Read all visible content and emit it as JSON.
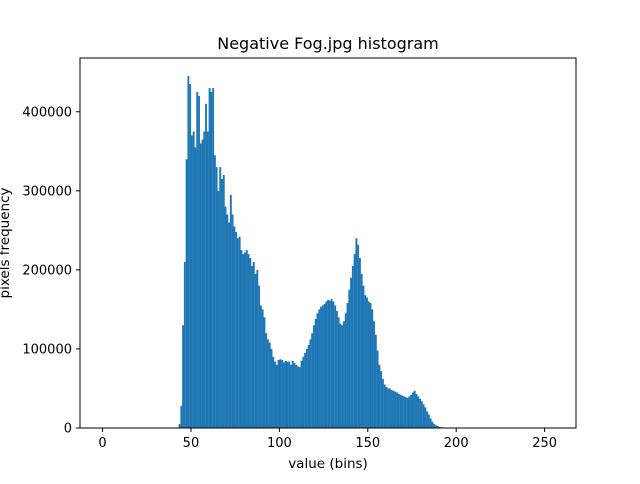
{
  "chart_data": {
    "type": "bar",
    "title": "Negative Fog.jpg histogram",
    "xlabel": "value (bins)",
    "ylabel": "pixels frequency",
    "xlim": [
      -12.75,
      267.75
    ],
    "ylim": [
      0,
      468000
    ],
    "xticks": [
      0,
      50,
      100,
      150,
      200,
      250
    ],
    "yticks": [
      0,
      100000,
      200000,
      300000,
      400000
    ],
    "grid": false,
    "bar_color": "#1f77b4",
    "bin_width": 1,
    "series": [
      {
        "values": [
          [
            43,
            5000
          ],
          [
            44,
            28000
          ],
          [
            45,
            130000
          ],
          [
            46,
            210000
          ],
          [
            47,
            340000
          ],
          [
            48,
            445000
          ],
          [
            49,
            435000
          ],
          [
            50,
            370000
          ],
          [
            51,
            375000
          ],
          [
            52,
            355000
          ],
          [
            53,
            425000
          ],
          [
            54,
            420000
          ],
          [
            55,
            360000
          ],
          [
            56,
            365000
          ],
          [
            57,
            375000
          ],
          [
            58,
            410000
          ],
          [
            59,
            375000
          ],
          [
            60,
            430000
          ],
          [
            61,
            425000
          ],
          [
            62,
            430000
          ],
          [
            63,
            345000
          ],
          [
            64,
            330000
          ],
          [
            65,
            300000
          ],
          [
            66,
            330000
          ],
          [
            67,
            315000
          ],
          [
            68,
            320000
          ],
          [
            69,
            280000
          ],
          [
            70,
            270000
          ],
          [
            71,
            260000
          ],
          [
            72,
            295000
          ],
          [
            73,
            270000
          ],
          [
            74,
            255000
          ],
          [
            75,
            248000
          ],
          [
            76,
            240000
          ],
          [
            77,
            242000
          ],
          [
            78,
            225000
          ],
          [
            79,
            220000
          ],
          [
            80,
            222000
          ],
          [
            81,
            225000
          ],
          [
            82,
            220000
          ],
          [
            83,
            215000
          ],
          [
            84,
            205000
          ],
          [
            85,
            210000
          ],
          [
            86,
            195000
          ],
          [
            87,
            200000
          ],
          [
            88,
            180000
          ],
          [
            89,
            155000
          ],
          [
            90,
            150000
          ],
          [
            91,
            140000
          ],
          [
            92,
            120000
          ],
          [
            93,
            112000
          ],
          [
            94,
            108000
          ],
          [
            95,
            100000
          ],
          [
            96,
            90000
          ],
          [
            97,
            84000
          ],
          [
            98,
            80000
          ],
          [
            99,
            86000
          ],
          [
            100,
            87000
          ],
          [
            101,
            86000
          ],
          [
            102,
            83000
          ],
          [
            103,
            85000
          ],
          [
            104,
            84000
          ],
          [
            105,
            84000
          ],
          [
            106,
            80000
          ],
          [
            107,
            85000
          ],
          [
            108,
            82000
          ],
          [
            109,
            80000
          ],
          [
            110,
            78000
          ],
          [
            111,
            77000
          ],
          [
            112,
            85000
          ],
          [
            113,
            90000
          ],
          [
            114,
            95000
          ],
          [
            115,
            100000
          ],
          [
            116,
            105000
          ],
          [
            117,
            112000
          ],
          [
            118,
            120000
          ],
          [
            119,
            130000
          ],
          [
            120,
            138000
          ],
          [
            121,
            145000
          ],
          [
            122,
            150000
          ],
          [
            123,
            153000
          ],
          [
            124,
            155000
          ],
          [
            125,
            157000
          ],
          [
            126,
            160000
          ],
          [
            127,
            162000
          ],
          [
            128,
            161000
          ],
          [
            129,
            163000
          ],
          [
            130,
            160000
          ],
          [
            131,
            155000
          ],
          [
            132,
            148000
          ],
          [
            133,
            140000
          ],
          [
            134,
            132000
          ],
          [
            135,
            130000
          ],
          [
            136,
            135000
          ],
          [
            137,
            145000
          ],
          [
            138,
            158000
          ],
          [
            139,
            175000
          ],
          [
            140,
            190000
          ],
          [
            141,
            205000
          ],
          [
            142,
            220000
          ],
          [
            143,
            240000
          ],
          [
            144,
            232000
          ],
          [
            145,
            215000
          ],
          [
            146,
            195000
          ],
          [
            147,
            180000
          ],
          [
            148,
            168000
          ],
          [
            149,
            165000
          ],
          [
            150,
            160000
          ],
          [
            151,
            158000
          ],
          [
            152,
            150000
          ],
          [
            153,
            135000
          ],
          [
            154,
            118000
          ],
          [
            155,
            98000
          ],
          [
            156,
            80000
          ],
          [
            157,
            72000
          ],
          [
            158,
            62000
          ],
          [
            159,
            55000
          ],
          [
            160,
            52000
          ],
          [
            161,
            50000
          ],
          [
            162,
            50000
          ],
          [
            163,
            48000
          ],
          [
            164,
            47000
          ],
          [
            165,
            46000
          ],
          [
            166,
            45000
          ],
          [
            167,
            43000
          ],
          [
            168,
            42000
          ],
          [
            169,
            41000
          ],
          [
            170,
            40000
          ],
          [
            171,
            39000
          ],
          [
            172,
            38000
          ],
          [
            173,
            40000
          ],
          [
            174,
            42000
          ],
          [
            175,
            45000
          ],
          [
            176,
            47000
          ],
          [
            177,
            43000
          ],
          [
            178,
            40000
          ],
          [
            179,
            37000
          ],
          [
            180,
            34000
          ],
          [
            181,
            30000
          ],
          [
            182,
            26000
          ],
          [
            183,
            21000
          ],
          [
            184,
            17000
          ],
          [
            185,
            12000
          ],
          [
            186,
            8000
          ],
          [
            187,
            5000
          ],
          [
            188,
            3500
          ],
          [
            189,
            2500
          ],
          [
            190,
            1500
          ],
          [
            191,
            1000
          ],
          [
            192,
            700
          ],
          [
            193,
            500
          ],
          [
            194,
            300
          ],
          [
            195,
            200
          ],
          [
            196,
            100
          ]
        ]
      }
    ]
  }
}
